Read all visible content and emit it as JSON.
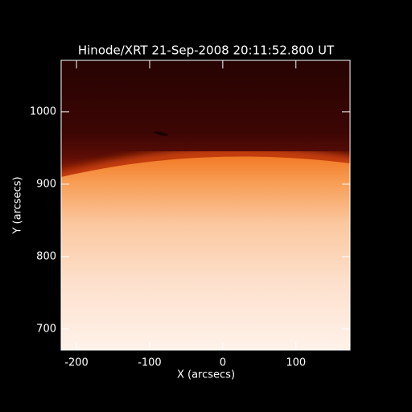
{
  "chart_data": {
    "type": "image",
    "title": "Hinode/XRT 21-Sep-2008 20:11:52.800 UT",
    "x_label": "X (arcsecs)",
    "y_label": "Y (arcsecs)",
    "xlim": [
      -221,
      174
    ],
    "ylim": [
      671,
      1071
    ],
    "xticks": [
      -200,
      -100,
      0,
      100
    ],
    "yticks": [
      700,
      800,
      900,
      1000
    ]
  }
}
